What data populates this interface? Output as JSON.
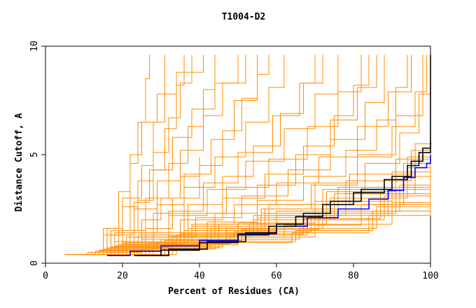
{
  "chart_data": {
    "type": "line",
    "title": "T1004-D2",
    "xlabel": "Percent of Residues (CA)",
    "ylabel": "Distance Cutoff, A",
    "xlim": [
      0,
      100
    ],
    "ylim": [
      0,
      10
    ],
    "x_ticks": [
      0,
      20,
      40,
      60,
      80,
      100
    ],
    "y_ticks": [
      0,
      5,
      10
    ],
    "grid": false,
    "colors": {
      "background_models": "#ff8c00",
      "highlight_blue": "#0000ff",
      "highlight_black": "#000000",
      "axes": "#000000"
    },
    "series": [
      {
        "name": "blue",
        "color": "#0000ff",
        "x": [
          16,
          22,
          30,
          40,
          50,
          60,
          68,
          76,
          84,
          89,
          93,
          96,
          99,
          100,
          100
        ],
        "y": [
          0.35,
          0.55,
          0.8,
          1.05,
          1.35,
          1.7,
          2.1,
          2.5,
          2.95,
          3.35,
          3.95,
          4.4,
          4.6,
          4.7,
          5.0
        ]
      },
      {
        "name": "black-1",
        "color": "#000000",
        "x": [
          24,
          30,
          40,
          50,
          58,
          65,
          72,
          80,
          88,
          94,
          97,
          100,
          100
        ],
        "y": [
          0.35,
          0.6,
          0.95,
          1.3,
          1.7,
          2.15,
          2.7,
          3.25,
          3.85,
          4.5,
          5.1,
          5.6,
          9.6
        ]
      },
      {
        "name": "black-2",
        "color": "#000000",
        "x": [
          23,
          32,
          42,
          52,
          60,
          67,
          74,
          82,
          90,
          95,
          98,
          100
        ],
        "y": [
          0.35,
          0.65,
          1.0,
          1.4,
          1.8,
          2.3,
          2.85,
          3.4,
          4.0,
          4.7,
          5.3,
          5.6
        ]
      }
    ],
    "background_models": [
      {
        "x": [
          5,
          12,
          25,
          45,
          65,
          85,
          100
        ],
        "y": [
          0.4,
          0.5,
          0.7,
          1.0,
          1.5,
          2.4,
          4.0
        ]
      },
      {
        "x": [
          6,
          14,
          28,
          48,
          68,
          88,
          100
        ],
        "y": [
          0.4,
          0.6,
          0.9,
          1.3,
          2.0,
          3.1,
          4.6
        ]
      },
      {
        "x": [
          7,
          15,
          30,
          50,
          70,
          90,
          100
        ],
        "y": [
          0.4,
          0.6,
          0.85,
          1.2,
          1.8,
          2.8,
          4.2
        ]
      },
      {
        "x": [
          8,
          16,
          32,
          52,
          72,
          92,
          100
        ],
        "y": [
          0.4,
          0.7,
          1.1,
          1.6,
          2.4,
          3.6,
          5.0
        ]
      },
      {
        "x": [
          6,
          13,
          26,
          46,
          66,
          86,
          100
        ],
        "y": [
          0.4,
          0.55,
          0.75,
          1.1,
          1.6,
          2.6,
          4.4
        ]
      },
      {
        "x": [
          9,
          17,
          33,
          53,
          73,
          93,
          100
        ],
        "y": [
          0.4,
          0.75,
          1.2,
          1.8,
          2.7,
          4.0,
          5.4
        ]
      },
      {
        "x": [
          5,
          11,
          24,
          44,
          64,
          84,
          100
        ],
        "y": [
          0.4,
          0.5,
          0.65,
          0.95,
          1.4,
          2.2,
          3.8
        ]
      },
      {
        "x": [
          10,
          18,
          34,
          54,
          74,
          94,
          100
        ],
        "y": [
          0.4,
          0.8,
          1.3,
          2.0,
          3.0,
          4.4,
          5.7
        ]
      },
      {
        "x": [
          7,
          15,
          29,
          49,
          69,
          89,
          100
        ],
        "y": [
          0.4,
          0.65,
          1.0,
          1.45,
          2.2,
          3.4,
          4.8
        ]
      },
      {
        "x": [
          8,
          16,
          31,
          51,
          71,
          91,
          100
        ],
        "y": [
          0.4,
          0.7,
          1.05,
          1.55,
          2.3,
          3.5,
          5.1
        ]
      },
      {
        "x": [
          6,
          14,
          27,
          47,
          67,
          87,
          100
        ],
        "y": [
          0.4,
          0.6,
          0.95,
          1.35,
          2.05,
          3.2,
          4.9
        ]
      },
      {
        "x": [
          9,
          18,
          35,
          55,
          75,
          93,
          100
        ],
        "y": [
          0.4,
          0.8,
          1.35,
          2.1,
          3.2,
          4.6,
          5.8
        ]
      },
      {
        "x": [
          11,
          20,
          36,
          56,
          76,
          94,
          100
        ],
        "y": [
          0.4,
          0.9,
          1.5,
          2.3,
          3.5,
          4.9,
          6.0
        ]
      },
      {
        "x": [
          7,
          13,
          25,
          43,
          62,
          82,
          100
        ],
        "y": [
          0.4,
          0.55,
          0.8,
          1.2,
          1.75,
          2.7,
          5.2
        ]
      },
      {
        "x": [
          12,
          20,
          37,
          57,
          78,
          95,
          100
        ],
        "y": [
          0.4,
          0.95,
          1.6,
          2.5,
          3.8,
          5.2,
          6.2
        ]
      },
      {
        "x": [
          8,
          17,
          32,
          50,
          70,
          90,
          100
        ],
        "y": [
          0.4,
          0.75,
          1.25,
          1.85,
          2.85,
          4.2,
          5.6
        ]
      },
      {
        "x": [
          13,
          22,
          38,
          58,
          79,
          96,
          100
        ],
        "y": [
          0.4,
          1.0,
          1.7,
          2.7,
          4.1,
          5.5,
          6.5
        ]
      },
      {
        "x": [
          10,
          19,
          35,
          54,
          73,
          91,
          100
        ],
        "y": [
          0.4,
          0.85,
          1.4,
          2.2,
          3.3,
          4.8,
          5.9
        ]
      },
      {
        "x": [
          8,
          14,
          26,
          42,
          60,
          78,
          96,
          100
        ],
        "y": [
          0.4,
          0.6,
          1.0,
          1.5,
          2.2,
          3.2,
          4.6,
          5.3
        ]
      },
      {
        "x": [
          12,
          18,
          25,
          30,
          35,
          40
        ],
        "y": [
          0.4,
          1.0,
          2.0,
          3.0,
          4.0,
          4.9
        ]
      },
      {
        "x": [
          12,
          17,
          22,
          25,
          28,
          31
        ],
        "y": [
          0.4,
          1.5,
          3.0,
          4.5,
          6.5,
          9.6
        ]
      },
      {
        "x": [
          11,
          16,
          20,
          22,
          24,
          26,
          27
        ],
        "y": [
          0.4,
          1.6,
          3.0,
          4.6,
          6.5,
          8.5,
          9.6
        ]
      },
      {
        "x": [
          13,
          18,
          23,
          27,
          31,
          34,
          36
        ],
        "y": [
          0.4,
          1.4,
          2.8,
          4.3,
          6.2,
          8.2,
          9.6
        ]
      },
      {
        "x": [
          10,
          15,
          20,
          24,
          28,
          32,
          35,
          38
        ],
        "y": [
          0.4,
          1.3,
          2.6,
          3.8,
          5.1,
          6.7,
          8.3,
          9.6
        ]
      },
      {
        "x": [
          14,
          20,
          26,
          32,
          37,
          41,
          44
        ],
        "y": [
          0.4,
          1.5,
          3.0,
          4.6,
          6.3,
          8.0,
          9.6
        ]
      },
      {
        "x": [
          12,
          17,
          23,
          29,
          35,
          41,
          46,
          50
        ],
        "y": [
          0.4,
          1.3,
          2.5,
          3.8,
          5.2,
          6.8,
          8.3,
          9.6
        ]
      },
      {
        "x": [
          15,
          22,
          29,
          36,
          43,
          49,
          55
        ],
        "y": [
          0.4,
          1.4,
          2.7,
          4.1,
          5.7,
          7.5,
          9.6
        ]
      },
      {
        "x": [
          14,
          21,
          28,
          36,
          44,
          52,
          58,
          62
        ],
        "y": [
          0.4,
          1.2,
          2.3,
          3.5,
          4.9,
          6.5,
          8.1,
          9.6
        ]
      },
      {
        "x": [
          16,
          24,
          32,
          41,
          50,
          59,
          66,
          70
        ],
        "y": [
          0.4,
          1.3,
          2.4,
          3.7,
          5.1,
          6.8,
          8.3,
          9.6
        ]
      },
      {
        "x": [
          15,
          23,
          32,
          42,
          52,
          62,
          70,
          76
        ],
        "y": [
          0.4,
          1.2,
          2.2,
          3.4,
          4.7,
          6.2,
          7.8,
          9.6
        ]
      },
      {
        "x": [
          17,
          26,
          36,
          47,
          58,
          68,
          76,
          82
        ],
        "y": [
          0.4,
          1.3,
          2.3,
          3.5,
          4.8,
          6.3,
          7.9,
          9.6
        ]
      },
      {
        "x": [
          16,
          25,
          35,
          46,
          57,
          67,
          75,
          80,
          84
        ],
        "y": [
          0.4,
          1.1,
          2.0,
          3.0,
          4.1,
          5.4,
          6.8,
          8.2,
          9.6
        ]
      },
      {
        "x": [
          18,
          28,
          39,
          51,
          63,
          74,
          83,
          88
        ],
        "y": [
          0.4,
          1.2,
          2.1,
          3.1,
          4.3,
          5.7,
          7.4,
          9.6
        ]
      },
      {
        "x": [
          19,
          30,
          42,
          55,
          67,
          78,
          86,
          91,
          94
        ],
        "y": [
          0.4,
          1.1,
          1.9,
          2.9,
          4.0,
          5.2,
          6.6,
          8.1,
          9.6
        ]
      },
      {
        "x": [
          20,
          32,
          45,
          58,
          70,
          81,
          90,
          96,
          99
        ],
        "y": [
          0.4,
          1.0,
          1.8,
          2.7,
          3.7,
          4.9,
          6.3,
          7.9,
          9.6
        ]
      },
      {
        "x": [
          21,
          34,
          47,
          60,
          72,
          83,
          92,
          97,
          100
        ],
        "y": [
          0.4,
          0.9,
          1.6,
          2.4,
          3.4,
          4.6,
          6.0,
          7.8,
          9.6
        ]
      },
      {
        "x": [
          17,
          27,
          38,
          49,
          60,
          71,
          81,
          89,
          95
        ],
        "y": [
          0.4,
          1.0,
          1.8,
          2.7,
          3.7,
          4.9,
          6.3,
          7.9,
          9.6
        ]
      },
      {
        "x": [
          13,
          19,
          24,
          28,
          33,
          38,
          44,
          52
        ],
        "y": [
          0.4,
          1.5,
          2.9,
          4.3,
          5.8,
          7.1,
          8.3,
          9.6
        ]
      },
      {
        "x": [
          18,
          26,
          33,
          40,
          46,
          51,
          55,
          58
        ],
        "y": [
          0.4,
          1.6,
          3.0,
          4.5,
          6.1,
          7.6,
          8.7,
          9.6
        ]
      },
      {
        "x": [
          19,
          28,
          37,
          46,
          54,
          61,
          67,
          72
        ],
        "y": [
          0.4,
          1.4,
          2.7,
          4.0,
          5.4,
          6.9,
          8.3,
          9.6
        ]
      },
      {
        "x": [
          11,
          15,
          19,
          22,
          25,
          29,
          34,
          41
        ],
        "y": [
          0.4,
          1.6,
          3.3,
          5.0,
          6.5,
          7.8,
          8.8,
          9.6
        ]
      },
      {
        "x": [
          22,
          33,
          44,
          55,
          65,
          74,
          81,
          86
        ],
        "y": [
          0.4,
          1.2,
          2.3,
          3.6,
          5.0,
          6.6,
          8.1,
          9.6
        ]
      },
      {
        "x": [
          20,
          31,
          43,
          56,
          69,
          81,
          91,
          98
        ],
        "y": [
          0.4,
          0.9,
          1.6,
          2.5,
          3.6,
          5.0,
          6.8,
          9.6
        ]
      }
    ]
  }
}
